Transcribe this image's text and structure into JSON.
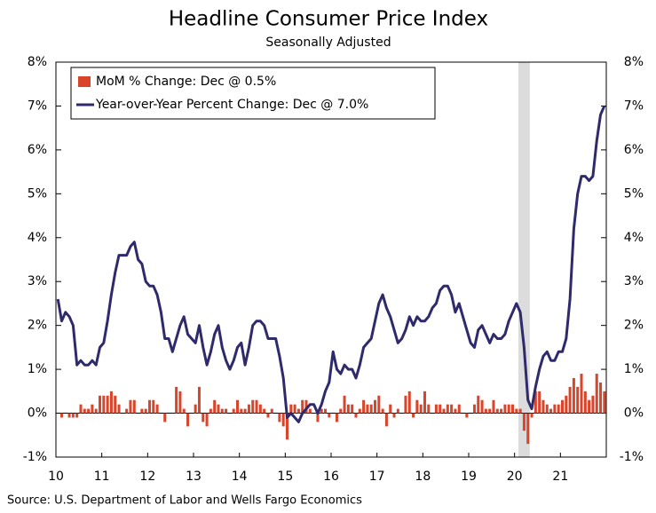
{
  "chart_data": {
    "type": "combo",
    "title": "Headline Consumer Price Index",
    "subtitle": "Seasonally Adjusted",
    "source": "Source: U.S. Department of Labor and Wells Fargo Economics",
    "categories": [
      "10",
      null,
      null,
      null,
      null,
      null,
      null,
      null,
      null,
      null,
      null,
      null,
      "11",
      null,
      null,
      null,
      null,
      null,
      null,
      null,
      null,
      null,
      null,
      null,
      "12",
      null,
      null,
      null,
      null,
      null,
      null,
      null,
      null,
      null,
      null,
      null,
      "13",
      null,
      null,
      null,
      null,
      null,
      null,
      null,
      null,
      null,
      null,
      null,
      "14",
      null,
      null,
      null,
      null,
      null,
      null,
      null,
      null,
      null,
      null,
      null,
      "15",
      null,
      null,
      null,
      null,
      null,
      null,
      null,
      null,
      null,
      null,
      null,
      "16",
      null,
      null,
      null,
      null,
      null,
      null,
      null,
      null,
      null,
      null,
      null,
      "17",
      null,
      null,
      null,
      null,
      null,
      null,
      null,
      null,
      null,
      null,
      null,
      "18",
      null,
      null,
      null,
      null,
      null,
      null,
      null,
      null,
      null,
      null,
      null,
      "19",
      null,
      null,
      null,
      null,
      null,
      null,
      null,
      null,
      null,
      null,
      null,
      "20",
      null,
      null,
      null,
      null,
      null,
      null,
      null,
      null,
      null,
      null,
      null,
      "21",
      null,
      null,
      null,
      null,
      null,
      null,
      null,
      null,
      null,
      null,
      null
    ],
    "series": [
      {
        "name": "MoM % Change: Dec @ 0.5%",
        "type": "bar",
        "color": "#d9452b",
        "axis": "y",
        "values": [
          0.0,
          -0.1,
          0.0,
          -0.1,
          -0.1,
          -0.1,
          0.2,
          0.1,
          0.1,
          0.2,
          0.1,
          0.4,
          0.4,
          0.4,
          0.5,
          0.4,
          0.2,
          0.0,
          0.1,
          0.3,
          0.3,
          0.0,
          0.1,
          0.1,
          0.3,
          0.3,
          0.2,
          0.0,
          -0.2,
          0.0,
          0.0,
          0.6,
          0.5,
          0.1,
          -0.3,
          0.0,
          0.2,
          0.6,
          -0.2,
          -0.3,
          0.1,
          0.3,
          0.2,
          0.1,
          0.1,
          0.0,
          0.1,
          0.3,
          0.1,
          0.1,
          0.2,
          0.3,
          0.3,
          0.2,
          0.1,
          -0.1,
          0.1,
          0.0,
          -0.2,
          -0.3,
          -0.6,
          0.2,
          0.2,
          0.1,
          0.3,
          0.3,
          0.1,
          0.0,
          -0.2,
          0.1,
          0.1,
          -0.1,
          0.0,
          -0.2,
          0.1,
          0.4,
          0.2,
          0.2,
          -0.1,
          0.1,
          0.3,
          0.2,
          0.2,
          0.3,
          0.4,
          0.1,
          -0.3,
          0.2,
          -0.1,
          0.1,
          0.0,
          0.4,
          0.5,
          -0.1,
          0.3,
          0.2,
          0.5,
          0.2,
          0.0,
          0.2,
          0.2,
          0.1,
          0.2,
          0.2,
          0.1,
          0.2,
          0.0,
          -0.1,
          0.0,
          0.2,
          0.4,
          0.3,
          0.1,
          0.1,
          0.3,
          0.1,
          0.1,
          0.2,
          0.2,
          0.2,
          0.1,
          0.1,
          -0.4,
          -0.7,
          -0.1,
          0.5,
          0.5,
          0.3,
          0.2,
          0.1,
          0.2,
          0.2,
          0.3,
          0.4,
          0.6,
          0.8,
          0.6,
          0.9,
          0.5,
          0.3,
          0.4,
          0.9,
          0.7,
          0.5
        ]
      },
      {
        "name": "Year-over-Year Percent Change: Dec @ 7.0%",
        "type": "line",
        "color": "#2e2a6b",
        "axis": "y2",
        "values": [
          2.6,
          2.1,
          2.3,
          2.2,
          2.0,
          1.1,
          1.2,
          1.1,
          1.1,
          1.2,
          1.1,
          1.5,
          1.6,
          2.1,
          2.7,
          3.2,
          3.6,
          3.6,
          3.6,
          3.8,
          3.9,
          3.5,
          3.4,
          3.0,
          2.9,
          2.9,
          2.7,
          2.3,
          1.7,
          1.7,
          1.4,
          1.7,
          2.0,
          2.2,
          1.8,
          1.7,
          1.6,
          2.0,
          1.5,
          1.1,
          1.4,
          1.8,
          2.0,
          1.5,
          1.2,
          1.0,
          1.2,
          1.5,
          1.6,
          1.1,
          1.5,
          2.0,
          2.1,
          2.1,
          2.0,
          1.7,
          1.7,
          1.7,
          1.3,
          0.8,
          -0.1,
          0.0,
          -0.1,
          -0.2,
          0.0,
          0.1,
          0.2,
          0.2,
          0.0,
          0.2,
          0.5,
          0.7,
          1.4,
          1.0,
          0.9,
          1.1,
          1.0,
          1.0,
          0.8,
          1.1,
          1.5,
          1.6,
          1.7,
          2.1,
          2.5,
          2.7,
          2.4,
          2.2,
          1.9,
          1.6,
          1.7,
          1.9,
          2.2,
          2.0,
          2.2,
          2.1,
          2.1,
          2.2,
          2.4,
          2.5,
          2.8,
          2.9,
          2.9,
          2.7,
          2.3,
          2.5,
          2.2,
          1.9,
          1.6,
          1.5,
          1.9,
          2.0,
          1.8,
          1.6,
          1.8,
          1.7,
          1.7,
          1.8,
          2.1,
          2.3,
          2.5,
          2.3,
          1.5,
          0.3,
          0.1,
          0.6,
          1.0,
          1.3,
          1.4,
          1.2,
          1.2,
          1.4,
          1.4,
          1.7,
          2.6,
          4.2,
          5.0,
          5.4,
          5.4,
          5.3,
          5.4,
          6.2,
          6.8,
          7.0
        ]
      }
    ],
    "shaded": {
      "from": 121,
      "to": 123,
      "color": "#dcdcdc"
    },
    "ylim": [
      -1,
      8
    ],
    "yticks": [
      {
        "value": -1,
        "label": "-1%"
      },
      {
        "value": 0,
        "label": "0%"
      },
      {
        "value": 1,
        "label": "1%"
      },
      {
        "value": 2,
        "label": "2%"
      },
      {
        "value": 3,
        "label": "3%"
      },
      {
        "value": 4,
        "label": "4%"
      },
      {
        "value": 5,
        "label": "5%"
      },
      {
        "value": 6,
        "label": "6%"
      },
      {
        "value": 7,
        "label": "7%"
      },
      {
        "value": 8,
        "label": "8%"
      }
    ],
    "y2lim": [
      -1,
      8
    ],
    "y2ticks": [
      {
        "value": -1,
        "label": "-1%"
      },
      {
        "value": 0,
        "label": "0%"
      },
      {
        "value": 1,
        "label": "1%"
      },
      {
        "value": 2,
        "label": "2%"
      },
      {
        "value": 3,
        "label": "3%"
      },
      {
        "value": 4,
        "label": "4%"
      },
      {
        "value": 5,
        "label": "5%"
      },
      {
        "value": 6,
        "label": "6%"
      },
      {
        "value": 7,
        "label": "7%"
      },
      {
        "value": 8,
        "label": "8%"
      }
    ],
    "legend": "top-left"
  }
}
